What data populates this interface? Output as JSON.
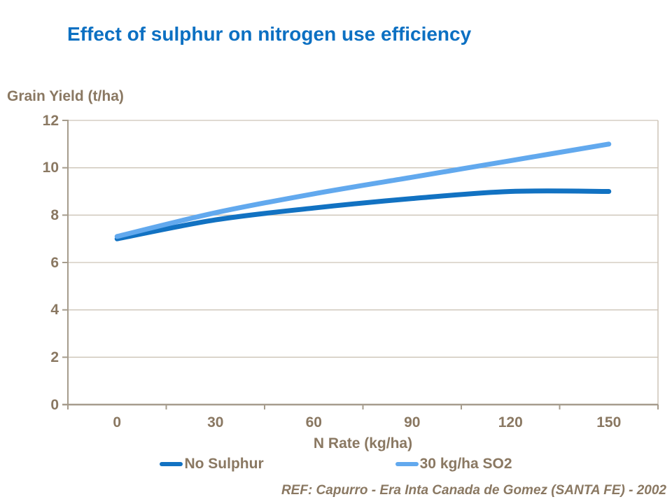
{
  "slide": {
    "footer": "REF: Capurro -  Era Inta Canada de Gomez (SANTA FE) - 2002"
  },
  "colors": {
    "title": "#0C70C2",
    "axis_text": "#8A7862",
    "axis_line": "#A69C8D",
    "grid_line": "#CDC4B7",
    "background": "#FFFFFF"
  },
  "chart_data": {
    "type": "line",
    "title": "Effect of sulphur on nitrogen use efficiency",
    "xlabel": "N Rate (kg/ha)",
    "ylabel": "Grain Yield (t/ha)",
    "x": [
      0,
      30,
      60,
      90,
      120,
      150
    ],
    "x_tick_labels": [
      "0",
      "30",
      "60",
      "90",
      "120",
      "150"
    ],
    "yticks": [
      0,
      2,
      4,
      6,
      8,
      10,
      12
    ],
    "ytick_labels": [
      "0",
      "2",
      "4",
      "6",
      "8",
      "10",
      "12"
    ],
    "ylim": [
      0,
      12
    ],
    "grid": true,
    "line_style": "smooth",
    "legend_position": "bottom",
    "series": [
      {
        "name": "No Sulphur",
        "color": "#1272C2",
        "values": [
          7.0,
          7.8,
          8.3,
          8.7,
          9.0,
          9.0
        ]
      },
      {
        "name": "30 kg/ha SO2",
        "color": "#62A9EE",
        "values": [
          7.1,
          8.1,
          8.9,
          9.6,
          10.3,
          11.0
        ]
      }
    ]
  }
}
